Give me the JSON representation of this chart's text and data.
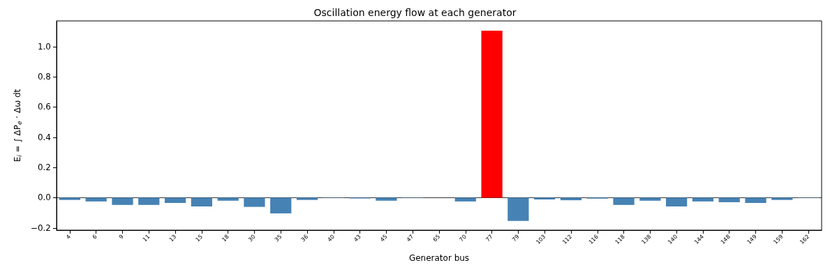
{
  "chart_data": {
    "type": "bar",
    "title": "Oscillation energy flow at each generator",
    "xlabel": "Generator bus",
    "ylabel": "E$_{i}$ = ∫ ΔP$_{e}$ · Δω dt",
    "categories": [
      "4",
      "6",
      "9",
      "11",
      "13",
      "15",
      "18",
      "30",
      "35",
      "36",
      "40",
      "43",
      "45",
      "47",
      "65",
      "70",
      "77",
      "79",
      "103",
      "112",
      "116",
      "118",
      "138",
      "140",
      "144",
      "148",
      "149",
      "159",
      "162"
    ],
    "values": [
      -0.015,
      -0.025,
      -0.048,
      -0.048,
      -0.035,
      -0.058,
      -0.02,
      -0.061,
      -0.104,
      -0.015,
      -0.002,
      -0.005,
      -0.02,
      -0.002,
      null,
      -0.025,
      1.105,
      -0.154,
      -0.012,
      -0.017,
      -0.006,
      -0.048,
      -0.02,
      -0.058,
      -0.025,
      -0.03,
      -0.035,
      -0.015,
      -0.002
    ],
    "colors": [
      "#4682b4",
      "#4682b4",
      "#4682b4",
      "#4682b4",
      "#4682b4",
      "#4682b4",
      "#4682b4",
      "#4682b4",
      "#4682b4",
      "#4682b4",
      "#4682b4",
      "#4682b4",
      "#4682b4",
      "#4682b4",
      "#4682b4",
      "#4682b4",
      "#ff0000",
      "#4682b4",
      "#4682b4",
      "#4682b4",
      "#4682b4",
      "#4682b4",
      "#4682b4",
      "#4682b4",
      "#4682b4",
      "#4682b4",
      "#4682b4",
      "#4682b4",
      "#4682b4"
    ],
    "ylim": [
      -0.215,
      1.17
    ],
    "yticks": [
      {
        "value": -0.2,
        "label": "−0.2"
      },
      {
        "value": 0,
        "label": "0.0"
      },
      0.2,
      0.4,
      0.6,
      0.8,
      {
        "value": 1,
        "label": "1.0"
      }
    ],
    "ref_lines": [
      {
        "axis": "y",
        "value": 0,
        "color": "#000000"
      }
    ],
    "grid": false
  }
}
